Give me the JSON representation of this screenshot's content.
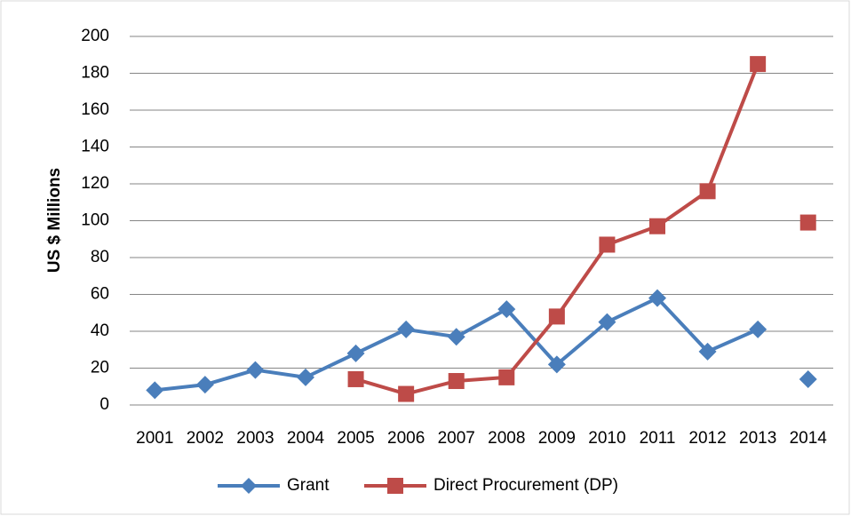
{
  "chart_data": {
    "type": "line",
    "y_label": "US $ Millions",
    "categories": [
      "2001",
      "2002",
      "2003",
      "2004",
      "2005",
      "2006",
      "2007",
      "2008",
      "2009",
      "2010",
      "2011",
      "2012",
      "2013",
      "2014"
    ],
    "series": [
      {
        "name": "Grant",
        "color": "#4a7ebb",
        "marker": "diamond",
        "values": [
          8,
          11,
          19,
          15,
          28,
          41,
          37,
          52,
          22,
          45,
          58,
          29,
          41,
          14
        ]
      },
      {
        "name": "Direct Procurement (DP)",
        "color": "#be4b48",
        "marker": "square",
        "values": [
          null,
          null,
          null,
          null,
          14,
          6,
          13,
          15,
          48,
          87,
          97,
          116,
          185,
          99
        ]
      }
    ],
    "gap_before_index": 13,
    "ylim": [
      0,
      200
    ],
    "yticks": [
      0,
      20,
      40,
      60,
      80,
      100,
      120,
      140,
      160,
      180,
      200
    ],
    "grid": true,
    "legend": "bottom"
  }
}
